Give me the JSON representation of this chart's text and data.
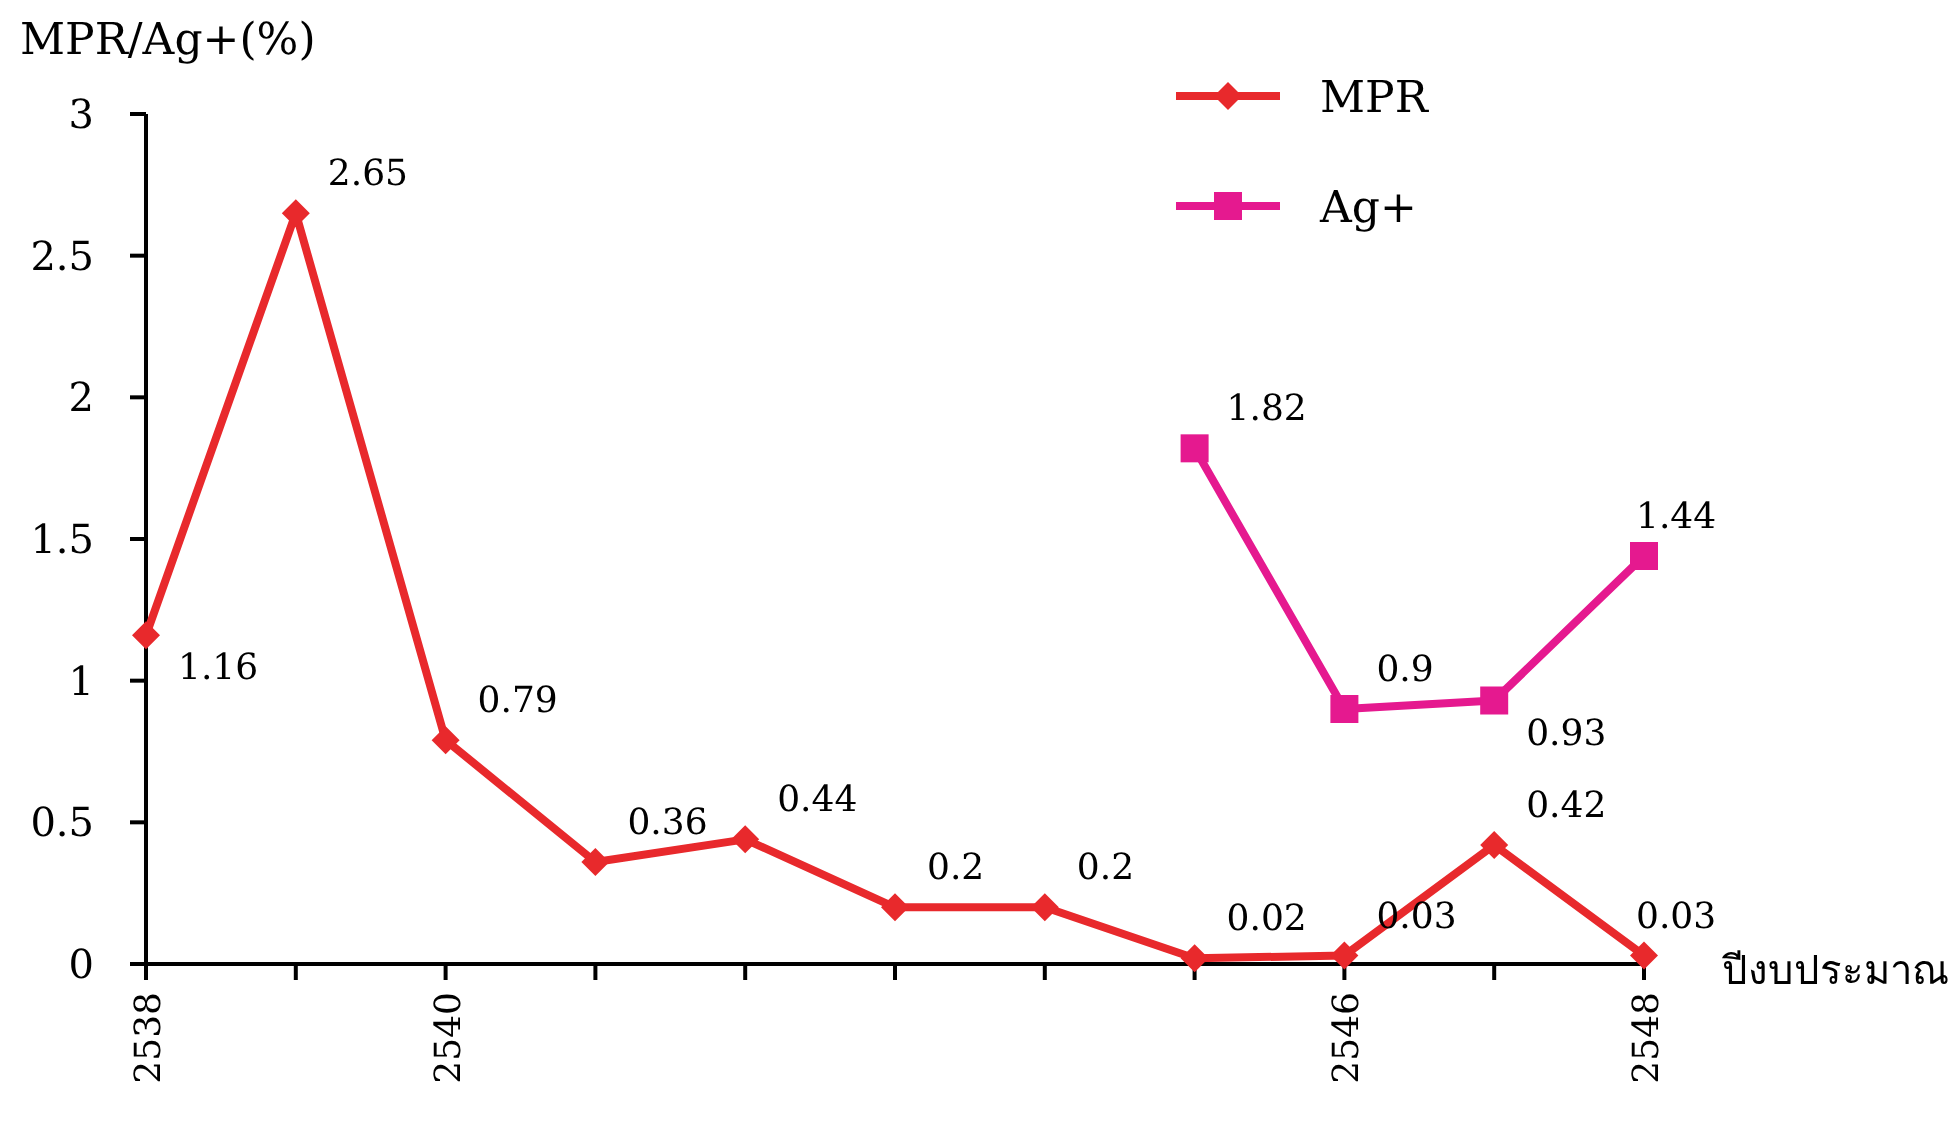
{
  "chart_data": {
    "type": "line",
    "ylabel": "MPR/Ag+(%)",
    "xlabel": "ปีงบประมาณ",
    "x": [
      2538,
      2539,
      2540,
      2541,
      2542,
      2543,
      2544,
      2545,
      2546,
      2547,
      2548
    ],
    "xlim": [
      2538,
      2548
    ],
    "xticks": [
      2538,
      {
        "value": 2539,
        "label": null
      },
      2540,
      {
        "value": 2541,
        "label": null
      },
      {
        "value": 2542,
        "label": null
      },
      {
        "value": 2543,
        "label": null
      },
      {
        "value": 2544,
        "label": null
      },
      {
        "value": 2545,
        "label": null
      },
      2546,
      {
        "value": 2547,
        "label": null
      },
      2548
    ],
    "ylim": [
      0,
      3
    ],
    "yticks": [
      0,
      0.5,
      1,
      1.5,
      2,
      2.5,
      3
    ],
    "series": [
      {
        "name": "MPR",
        "color": "#e8292c",
        "marker": "diamond",
        "values": [
          1.16,
          2.65,
          0.79,
          0.36,
          0.44,
          0.2,
          0.2,
          0.02,
          0.03,
          0.42,
          0.03
        ]
      },
      {
        "name": "Ag+",
        "color": "#e5198f",
        "marker": "square",
        "values": [
          null,
          null,
          null,
          null,
          null,
          null,
          null,
          1.82,
          0.9,
          0.93,
          1.44
        ]
      }
    ],
    "data_labels": true,
    "legend": "top right",
    "grid": false
  }
}
